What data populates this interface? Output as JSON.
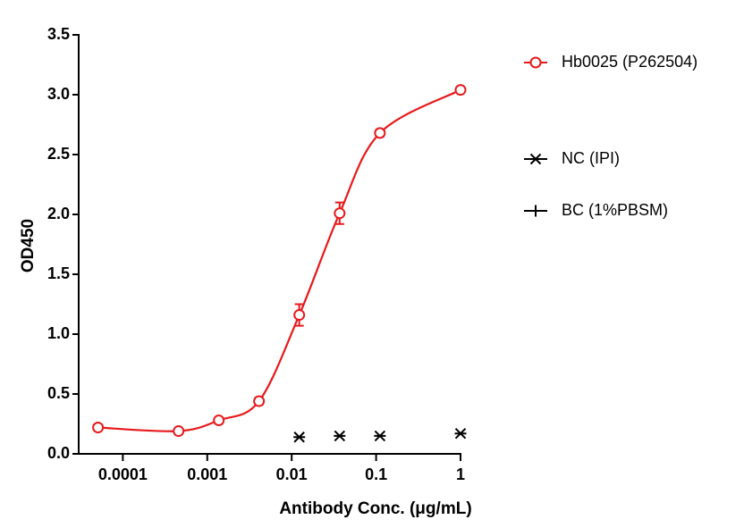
{
  "chart_data": {
    "type": "line",
    "xlabel": "Antibody Conc. (μg/mL)",
    "ylabel": "OD450",
    "x": [
      5.08e-05,
      0.000457,
      0.00137,
      0.0041,
      0.0123,
      0.037,
      0.111,
      1
    ],
    "xscale": "log",
    "xlim": [
      3e-05,
      1
    ],
    "xticks": [
      0.0001,
      0.001,
      0.01,
      0.1,
      1
    ],
    "ylim": [
      0,
      3.5
    ],
    "yticks": [
      {
        "value": 0,
        "label": "0.0"
      },
      {
        "value": 0.5,
        "label": "0.5"
      },
      {
        "value": 1,
        "label": "1.0"
      },
      {
        "value": 1.5,
        "label": "1.5"
      },
      {
        "value": 2,
        "label": "2.0"
      },
      {
        "value": 2.5,
        "label": "2.5"
      },
      {
        "value": 3,
        "label": "3.0"
      },
      {
        "value": 3.5,
        "label": "3.5"
      }
    ],
    "series": [
      {
        "name": "Hb0025 (P262504)",
        "color": "#e8191b",
        "marker": "circle",
        "curve": true,
        "values": [
          0.22,
          0.19,
          0.28,
          0.44,
          1.16,
          2.01,
          2.68,
          3.04
        ],
        "errors": [
          0.02,
          0.02,
          0.02,
          0.03,
          0.09,
          0.09,
          0.03,
          0.02
        ]
      },
      {
        "name": "NC (IPI)",
        "color": "#000000",
        "marker": "star",
        "curve": false,
        "values": [
          null,
          null,
          null,
          null,
          0.14,
          0.15,
          0.15,
          0.17
        ]
      },
      {
        "name": "BC (1%PBSM)",
        "color": "#000000",
        "marker": "plus",
        "curve": false,
        "values": [
          null,
          null,
          null,
          null,
          null,
          null,
          null,
          null
        ]
      }
    ]
  }
}
